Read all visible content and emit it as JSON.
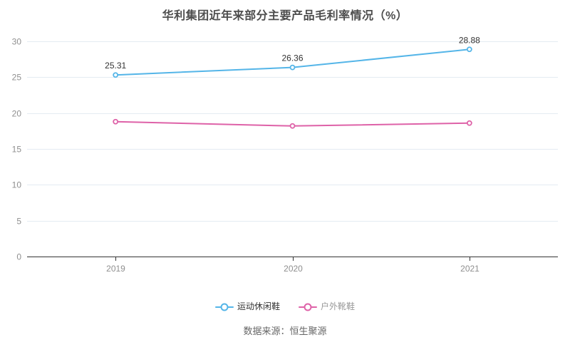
{
  "title": "华利集团近年来部分主要产品毛利率情况（%）",
  "source_text": "数据来源：恒生聚源",
  "chart_data": {
    "type": "line",
    "title": "华利集团近年来部分主要产品毛利率情况（%）",
    "categories": [
      "2019",
      "2020",
      "2021"
    ],
    "series": [
      {
        "name": "运动休闲鞋",
        "values": [
          25.31,
          26.36,
          28.88
        ],
        "color": "#54b5e8",
        "labels_visible": true,
        "legend_text_color": "#333333",
        "values_estimated": false
      },
      {
        "name": "户外靴鞋",
        "values": [
          18.8,
          18.2,
          18.6
        ],
        "color": "#de62a8",
        "labels_visible": false,
        "legend_text_color": "#999999",
        "values_estimated": true
      }
    ],
    "xlabel": "",
    "ylabel": "",
    "ylim": [
      0,
      30
    ],
    "ytick_step": 5,
    "yticks": [
      0,
      5,
      10,
      15,
      20,
      25,
      30
    ],
    "grid": true,
    "legend_position": "bottom"
  },
  "colors": {
    "background": "#ffffff",
    "grid_line": "#e4ebf2",
    "axis_line": "#333333",
    "axis_label": "#8f8f8f",
    "data_label": "#333333",
    "title_text": "#4d4d4d",
    "source_text": "#666666"
  }
}
